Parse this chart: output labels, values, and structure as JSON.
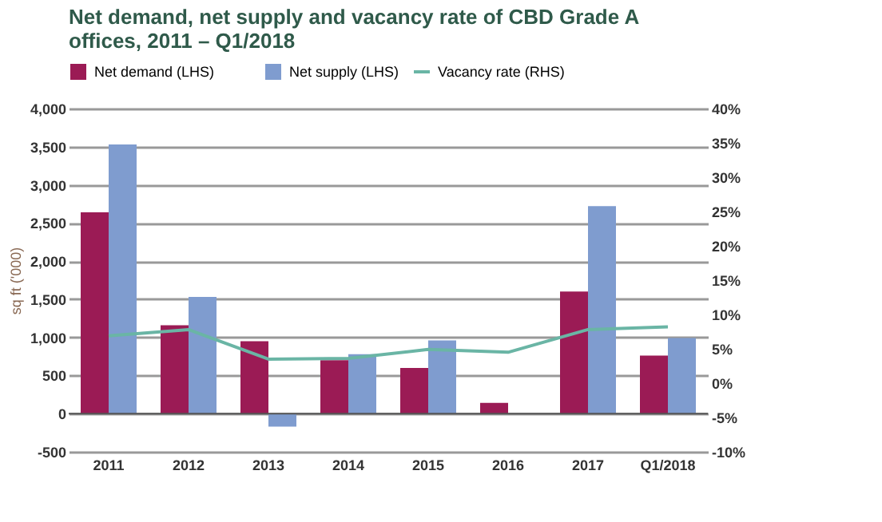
{
  "chart_data": {
    "type": "bar",
    "title": "Net demand, net supply and vacancy rate of CBD Grade A offices, 2011 – Q1/2018",
    "categories": [
      "2011",
      "2012",
      "2013",
      "2014",
      "2015",
      "2016",
      "2017",
      "Q1/2018"
    ],
    "ylabel": "sq ft ('000)",
    "series": [
      {
        "name": "Net demand (LHS)",
        "color": "#9b1b55",
        "values": [
          2640,
          1160,
          950,
          700,
          600,
          140,
          1600,
          760
        ]
      },
      {
        "name": "Net supply (LHS)",
        "color": "#7f9ccf",
        "values": [
          3530,
          1530,
          -170,
          780,
          960,
          null,
          2720,
          990
        ]
      },
      {
        "name": "Vacancy rate (RHS)",
        "type": "line",
        "axis": "y2",
        "color": "#6ab5a5",
        "values": [
          6.9,
          7.8,
          3.5,
          3.6,
          4.9,
          4.5,
          7.8,
          8.2
        ]
      }
    ],
    "ylim": [
      -500,
      4000
    ],
    "yticks": [
      {
        "value": -500,
        "label": "-500"
      },
      0,
      500,
      {
        "value": 1000,
        "label": "1,000"
      },
      {
        "value": 1500,
        "label": "1,500"
      },
      {
        "value": 2000,
        "label": "2,000"
      },
      {
        "value": 2500,
        "label": "2,500"
      },
      {
        "value": 3000,
        "label": "3,000"
      },
      {
        "value": 3500,
        "label": "3,500"
      },
      {
        "value": 4000,
        "label": "4,000"
      }
    ],
    "y2lim": [
      -10,
      40
    ],
    "y2ticks": [
      {
        "value": -10,
        "label": "-10%"
      },
      {
        "value": -5,
        "label": "-5%"
      },
      {
        "value": 0,
        "label": "0%"
      },
      {
        "value": 5,
        "label": "5%"
      },
      {
        "value": 10,
        "label": "10%"
      },
      {
        "value": 15,
        "label": "15%"
      },
      {
        "value": 20,
        "label": "20%"
      },
      {
        "value": 25,
        "label": "25%"
      },
      {
        "value": 30,
        "label": "30%"
      },
      {
        "value": 35,
        "label": "35%"
      },
      {
        "value": 40,
        "label": "40%"
      }
    ],
    "grid": "y",
    "legend": "top"
  }
}
